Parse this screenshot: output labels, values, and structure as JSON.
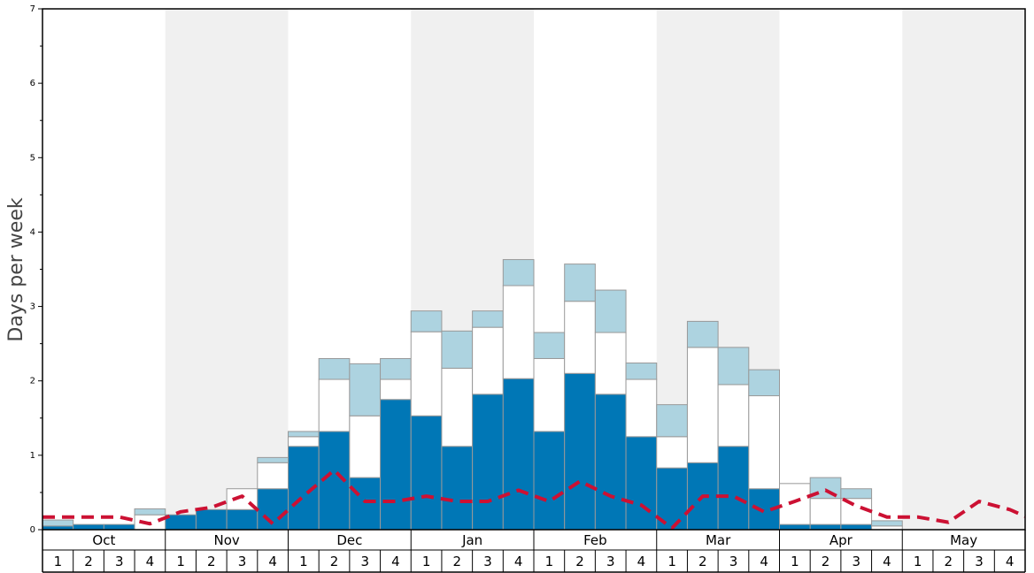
{
  "chart_data": {
    "type": "bar",
    "ylabel": "Days per week",
    "ylim": [
      0,
      7
    ],
    "yticks": [
      "0",
      "1",
      "2",
      "3",
      "4",
      "5",
      "6",
      "7"
    ],
    "months": [
      "Oct",
      "Nov",
      "Dec",
      "Jan",
      "Feb",
      "Mar",
      "Apr",
      "May"
    ],
    "week_labels": [
      "1",
      "2",
      "3",
      "4"
    ],
    "grid": false,
    "colors": {
      "dark": "#0077b6",
      "white": "#ffffff",
      "light": "#add3e0",
      "dashed": "#cc1133",
      "shade": "#f0f0f0"
    },
    "series": [
      {
        "values": [
          0.05,
          0.07,
          0.07,
          0,
          0.2,
          0.27,
          0.27,
          0.55,
          1.12,
          1.32,
          0.7,
          1.75,
          1.53,
          1.12,
          1.82,
          2.03,
          1.32,
          2.1,
          1.82,
          1.25,
          0.83,
          0.9,
          1.12,
          0.55,
          0.07,
          0.07,
          0.07,
          0,
          0,
          0,
          0,
          0
        ]
      },
      {
        "values": [
          0,
          0,
          0,
          0.2,
          0,
          0,
          0.28,
          0.35,
          0.13,
          0.7,
          0.83,
          0.27,
          1.13,
          1.05,
          0.9,
          1.25,
          0.98,
          0.97,
          0.83,
          0.77,
          0.42,
          1.55,
          0.83,
          1.25,
          0.55,
          0.35,
          0.35,
          0.05,
          0,
          0,
          0,
          0
        ]
      },
      {
        "values": [
          0.08,
          0,
          0,
          0.08,
          0,
          0,
          0,
          0.07,
          0.07,
          0.28,
          0.7,
          0.28,
          0.28,
          0.5,
          0.22,
          0.35,
          0.35,
          0.5,
          0.57,
          0.22,
          0.43,
          0.35,
          0.5,
          0.35,
          0,
          0.28,
          0.13,
          0.07,
          0,
          0,
          0,
          0
        ]
      },
      {
        "line": true,
        "values": [
          0.17,
          0.17,
          0.17,
          0.08,
          0.24,
          0.3,
          0.45,
          0.08,
          0.45,
          0.8,
          0.38,
          0.38,
          0.45,
          0.38,
          0.38,
          0.53,
          0.38,
          0.65,
          0.45,
          0.33,
          0.02,
          0.45,
          0.45,
          0.24,
          0.38,
          0.53,
          0.32,
          0.17,
          0.17,
          0.1,
          0.38,
          0.27
        ]
      }
    ],
    "trailing_line_value": 0.18
  }
}
